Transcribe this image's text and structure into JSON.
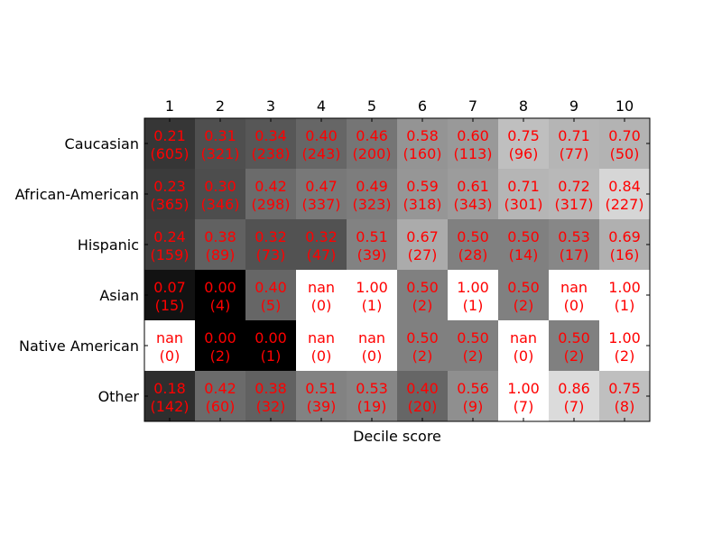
{
  "chart_data": {
    "type": "heatmap",
    "title": "",
    "xlabel": "Decile score",
    "ylabel": "",
    "x_categories": [
      "1",
      "2",
      "3",
      "4",
      "5",
      "6",
      "7",
      "8",
      "9",
      "10"
    ],
    "y_categories": [
      "Caucasian",
      "African-American",
      "Hispanic",
      "Asian",
      "Native American",
      "Other"
    ],
    "colormap": "gray",
    "value_range": [
      0,
      1
    ],
    "nan_color": "#ffffff",
    "annotation_color": "#ff0000",
    "x_tick_position": "top",
    "values": [
      [
        "0.21",
        "0.31",
        "0.34",
        "0.40",
        "0.46",
        "0.58",
        "0.60",
        "0.75",
        "0.71",
        "0.70"
      ],
      [
        "0.23",
        "0.30",
        "0.42",
        "0.47",
        "0.49",
        "0.59",
        "0.61",
        "0.71",
        "0.72",
        "0.84"
      ],
      [
        "0.24",
        "0.38",
        "0.32",
        "0.32",
        "0.51",
        "0.67",
        "0.50",
        "0.50",
        "0.53",
        "0.69"
      ],
      [
        "0.07",
        "0.00",
        "0.40",
        "nan",
        "1.00",
        "0.50",
        "1.00",
        "0.50",
        "nan",
        "1.00"
      ],
      [
        "nan",
        "0.00",
        "0.00",
        "nan",
        "nan",
        "0.50",
        "0.50",
        "nan",
        "0.50",
        "1.00"
      ],
      [
        "0.18",
        "0.42",
        "0.38",
        "0.51",
        "0.53",
        "0.40",
        "0.56",
        "1.00",
        "0.86",
        "0.75"
      ]
    ],
    "counts": [
      [
        "(605)",
        "(321)",
        "(238)",
        "(243)",
        "(200)",
        "(160)",
        "(113)",
        "(96)",
        "(77)",
        "(50)"
      ],
      [
        "(365)",
        "(346)",
        "(298)",
        "(337)",
        "(323)",
        "(318)",
        "(343)",
        "(301)",
        "(317)",
        "(227)"
      ],
      [
        "(159)",
        "(89)",
        "(73)",
        "(47)",
        "(39)",
        "(27)",
        "(28)",
        "(14)",
        "(17)",
        "(16)"
      ],
      [
        "(15)",
        "(4)",
        "(5)",
        "(0)",
        "(1)",
        "(2)",
        "(1)",
        "(2)",
        "(0)",
        "(1)"
      ],
      [
        "(0)",
        "(2)",
        "(1)",
        "(0)",
        "(0)",
        "(2)",
        "(2)",
        "(0)",
        "(2)",
        "(2)"
      ],
      [
        "(142)",
        "(60)",
        "(32)",
        "(39)",
        "(19)",
        "(20)",
        "(9)",
        "(7)",
        "(7)",
        "(8)"
      ]
    ]
  }
}
